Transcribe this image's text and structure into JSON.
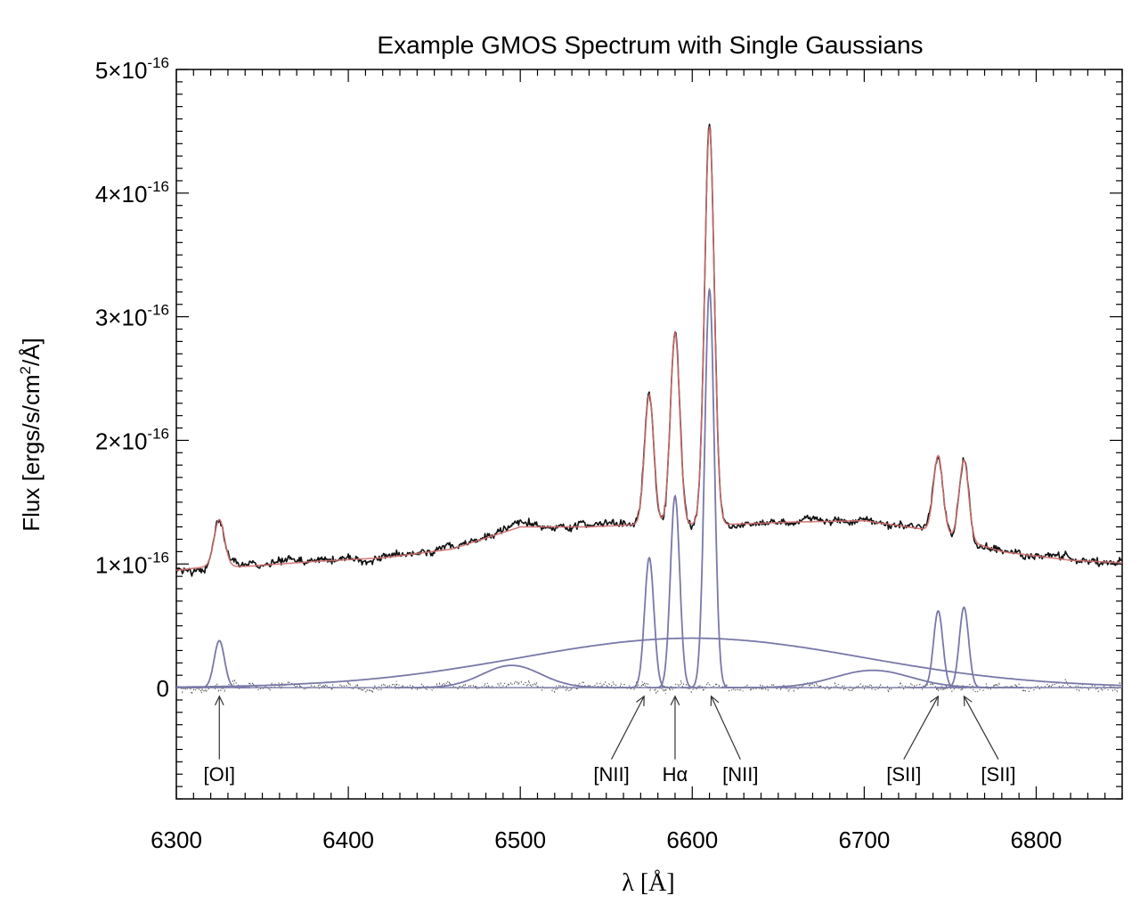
{
  "chart_data": {
    "type": "line",
    "title": "Example GMOS Spectrum with Single Gaussians",
    "xlabel": "λ [Å]",
    "ylabel_parts": [
      "Flux [ergs/s/cm",
      "2",
      "/Å]"
    ],
    "xlim": [
      6300,
      6850
    ],
    "ylim": [
      -9e-17,
      5e-16
    ],
    "x_ticks": [
      {
        "value": 6300,
        "label": "6300"
      },
      {
        "value": 6400,
        "label": "6400"
      },
      {
        "value": 6500,
        "label": "6500"
      },
      {
        "value": 6600,
        "label": "6600"
      },
      {
        "value": 6700,
        "label": "6700"
      },
      {
        "value": 6800,
        "label": "6800"
      }
    ],
    "y_ticks": [
      {
        "value": 0,
        "label": "0",
        "exp": ""
      },
      {
        "value": 1e-16,
        "label": "1×10",
        "exp": "-16"
      },
      {
        "value": 2e-16,
        "label": "2×10",
        "exp": "-16"
      },
      {
        "value": 3e-16,
        "label": "3×10",
        "exp": "-16"
      },
      {
        "value": 4e-16,
        "label": "4×10",
        "exp": "-16"
      },
      {
        "value": 5e-16,
        "label": "5×10",
        "exp": "-16"
      }
    ],
    "colors": {
      "observed": "#111111",
      "fit": "#d07070",
      "components": "#7878a8",
      "residual": "#555555"
    },
    "continuum": {
      "x": [
        6300,
        6320,
        6340,
        6380,
        6420,
        6460,
        6500,
        6540,
        6570,
        6620,
        6660,
        6700,
        6740,
        6780,
        6820,
        6850
      ],
      "y": [
        9.5e-17,
        9.8e-17,
        9.8e-17,
        1.02e-16,
        1.05e-16,
        1.12e-16,
        1.3e-16,
        1.3e-16,
        1.32e-16,
        1.32e-16,
        1.34e-16,
        1.35e-16,
        1.27e-16,
        1.1e-16,
        1.03e-16,
        1.01e-16
      ]
    },
    "emission_lines": [
      {
        "center": 6325,
        "sigma": 3.0,
        "amp": 3.8e-17
      },
      {
        "center": 6575,
        "sigma": 2.7,
        "amp": 1.05e-16
      },
      {
        "center": 6590,
        "sigma": 2.7,
        "amp": 1.55e-16
      },
      {
        "center": 6610,
        "sigma": 2.8,
        "amp": 3.22e-16
      },
      {
        "center": 6743,
        "sigma": 2.7,
        "amp": 6.2e-17
      },
      {
        "center": 6758,
        "sigma": 2.7,
        "amp": 6.5e-17
      }
    ],
    "broad_components": [
      {
        "center": 6600,
        "sigma": 100,
        "amp": 4e-17
      },
      {
        "center": 6495,
        "sigma": 17,
        "amp": 1.8e-17
      },
      {
        "center": 6705,
        "sigma": 22,
        "amp": 1.4e-17
      }
    ],
    "annotations": [
      {
        "label": "[OI]",
        "text_x": 6325,
        "text_y": -7e-17,
        "arrow_from": [
          6325,
          -5.8e-17
        ],
        "arrow_to": [
          6325,
          -7e-18
        ]
      },
      {
        "label": "[NII]",
        "text_x": 6553,
        "text_y": -7e-17,
        "arrow_from": [
          6553,
          -5.8e-17
        ],
        "arrow_to": [
          6572,
          -7e-18
        ]
      },
      {
        "label": "Hα",
        "text_x": 6590,
        "text_y": -7e-17,
        "arrow_from": [
          6590,
          -5.8e-17
        ],
        "arrow_to": [
          6590,
          -7e-18
        ]
      },
      {
        "label": "[NII]",
        "text_x": 6628,
        "text_y": -7e-17,
        "arrow_from": [
          6628,
          -5.8e-17
        ],
        "arrow_to": [
          6611,
          -7e-18
        ]
      },
      {
        "label": "[SII]",
        "text_x": 6723,
        "text_y": -7e-17,
        "arrow_from": [
          6723,
          -5.8e-17
        ],
        "arrow_to": [
          6743,
          -7e-18
        ]
      },
      {
        "label": "[SII]",
        "text_x": 6778,
        "text_y": -7e-17,
        "arrow_from": [
          6778,
          -5.8e-17
        ],
        "arrow_to": [
          6758,
          -7e-18
        ]
      }
    ]
  }
}
